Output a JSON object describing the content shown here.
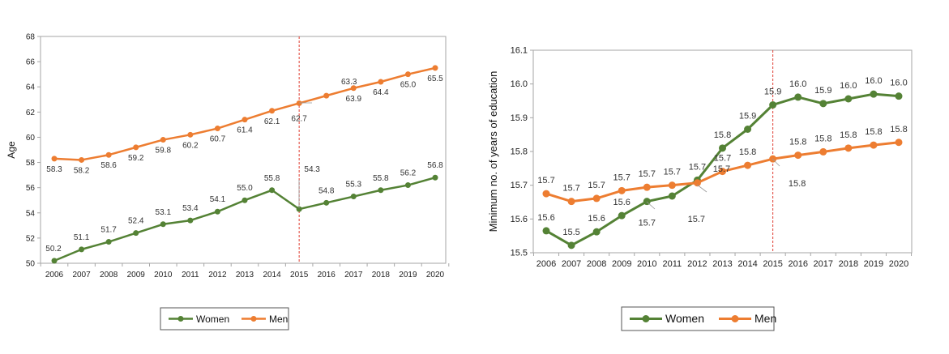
{
  "colors": {
    "women": "#548235",
    "men": "#ED7D31",
    "divider": "#E03C31",
    "axis": "#A6A6A6"
  },
  "chart_data": [
    {
      "type": "line",
      "title": "",
      "xlabel": "",
      "ylabel": "Age",
      "ylim": [
        50,
        68
      ],
      "yticks": [
        "50",
        "52",
        "54",
        "56",
        "58",
        "60",
        "62",
        "64",
        "66",
        "68"
      ],
      "x": [
        "2006",
        "2007",
        "2008",
        "2009",
        "2010",
        "2011",
        "2012",
        "2013",
        "2014",
        "2015",
        "2016",
        "2017",
        "2018",
        "2019",
        "2020"
      ],
      "marker_line": "2015",
      "series": [
        {
          "name": "Women",
          "color": "#548235",
          "values": [
            50.2,
            51.1,
            51.7,
            52.4,
            53.1,
            53.4,
            54.1,
            55.0,
            55.8,
            54.3,
            54.8,
            55.3,
            55.8,
            56.2,
            56.8
          ],
          "labels": [
            "50.2",
            "51.1",
            "51.7",
            "52.4",
            "53.1",
            "53.4",
            "54.1",
            "55.0",
            "55.8",
            "54.3",
            "54.8",
            "55.3",
            "55.8",
            "56.2",
            "56.8"
          ]
        },
        {
          "name": "Men",
          "color": "#ED7D31",
          "values": [
            58.3,
            58.2,
            58.6,
            59.2,
            59.8,
            60.2,
            60.7,
            61.4,
            62.1,
            62.7,
            63.3,
            63.9,
            64.4,
            65.0,
            65.5
          ],
          "labels": [
            "58.3",
            "58.2",
            "58.6",
            "59.2",
            "59.8",
            "60.2",
            "60.7",
            "61.4",
            "62.1",
            "62.7",
            "63.3",
            "63.9",
            "64.4",
            "65.0",
            "65.5"
          ]
        }
      ],
      "legend": [
        "Women",
        "Men"
      ]
    },
    {
      "type": "line",
      "title": "",
      "xlabel": "",
      "ylabel": "Minimum no. of years of education",
      "ylim": [
        15.5,
        16.1
      ],
      "yticks": [
        "15.5",
        "15.6",
        "15.7",
        "15.8",
        "15.9",
        "16.0",
        "16.1"
      ],
      "x": [
        "2006",
        "2007",
        "2008",
        "2009",
        "2010",
        "2011",
        "2012",
        "2013",
        "2014",
        "2015",
        "2016",
        "2017",
        "2018",
        "2019",
        "2020"
      ],
      "marker_line": "2015",
      "series": [
        {
          "name": "Women",
          "color": "#548235",
          "values": [
            15.565,
            15.522,
            15.562,
            15.61,
            15.652,
            15.668,
            15.715,
            15.81,
            15.866,
            15.938,
            15.961,
            15.942,
            15.956,
            15.97,
            15.964
          ],
          "labels": [
            "15.6",
            "15.5",
            "15.6",
            "15.6",
            "15.7",
            "15.7",
            "15.7",
            "15.8",
            "15.9",
            "15.9",
            "16.0",
            "15.9",
            "16.0",
            "16.0",
            "16.0"
          ]
        },
        {
          "name": "Men",
          "color": "#ED7D31",
          "values": [
            15.675,
            15.652,
            15.661,
            15.684,
            15.694,
            15.7,
            15.707,
            15.741,
            15.759,
            15.778,
            15.789,
            15.799,
            15.81,
            15.819,
            15.827
          ],
          "labels": [
            "15.7",
            "15.7",
            "15.7",
            "15.7",
            "15.7",
            "15.7",
            "15.7",
            "15.7",
            "15.8",
            "15.8",
            "15.8",
            "15.8",
            "15.8",
            "15.8",
            "15.8"
          ]
        }
      ],
      "legend": [
        "Women",
        "Men"
      ]
    }
  ]
}
